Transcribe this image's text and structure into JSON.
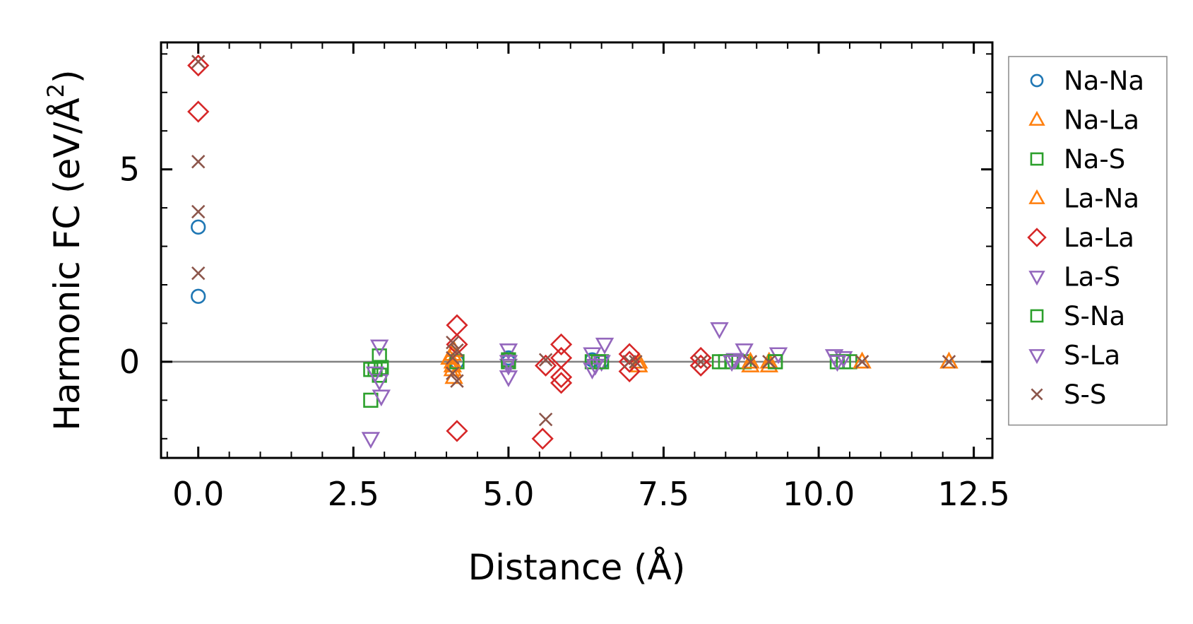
{
  "chart_data": {
    "type": "scatter",
    "xlabel": "Distance (Å)",
    "ylabel": {
      "prefix": "Harmonic FC (eV/Å",
      "sup": "2",
      "suffix": ")"
    },
    "xlim": [
      -0.6,
      12.8
    ],
    "ylim": [
      -2.5,
      8.3
    ],
    "xticks": [
      0.0,
      2.5,
      5.0,
      7.5,
      10.0,
      12.5
    ],
    "xtick_labels": [
      "0.0",
      "2.5",
      "5.0",
      "7.5",
      "10.0",
      "12.5"
    ],
    "yticks": [
      0,
      5
    ],
    "ytick_labels": [
      "0",
      "5"
    ],
    "zero_line": true,
    "legend_position": "right",
    "series": [
      {
        "name": "Na-Na",
        "marker": "circle",
        "color": "#1f77b4",
        "x": [
          0.0,
          0.0,
          4.17,
          5.0,
          5.0,
          6.35,
          6.5
        ],
        "y": [
          3.5,
          1.7,
          0.0,
          0.1,
          0.0,
          0.05,
          0.0
        ]
      },
      {
        "name": "Na-La",
        "marker": "triangle-up",
        "color": "#ff7f0e",
        "x": [
          4.1,
          4.1,
          4.1,
          4.12,
          7.1,
          8.9,
          9.2,
          10.7,
          12.1
        ],
        "y": [
          0.2,
          0.0,
          -0.2,
          -0.4,
          -0.1,
          -0.1,
          -0.1,
          0.0,
          0.0
        ]
      },
      {
        "name": "Na-S",
        "marker": "square",
        "color": "#2ca02c",
        "x": [
          2.78,
          2.78,
          2.92,
          2.92,
          2.95,
          4.17,
          5.0,
          6.35,
          6.5,
          8.4,
          8.6,
          8.8,
          9.3,
          10.3,
          10.5
        ],
        "y": [
          -1.0,
          -0.2,
          0.15,
          -0.35,
          -0.15,
          0.0,
          0.0,
          0.0,
          0.0,
          0.0,
          0.0,
          0.0,
          0.0,
          0.0,
          0.0
        ]
      },
      {
        "name": "La-Na",
        "marker": "triangle-up",
        "color": "#ff7f0e",
        "x": [
          4.05,
          4.1,
          4.12,
          7.1,
          8.9,
          9.2,
          10.7,
          12.1
        ],
        "y": [
          0.1,
          -0.1,
          0.3,
          0.0,
          0.0,
          0.0,
          0.0,
          0.0
        ]
      },
      {
        "name": "La-La",
        "marker": "diamond",
        "color": "#d62728",
        "x": [
          0.0,
          0.0,
          4.17,
          4.17,
          4.17,
          5.55,
          5.85,
          5.85,
          5.85,
          5.85,
          6.95,
          6.95,
          6.95,
          8.1,
          8.1,
          5.6
        ],
        "y": [
          7.7,
          6.5,
          0.95,
          0.45,
          -1.8,
          -2.0,
          0.45,
          0.1,
          -0.4,
          -0.55,
          0.2,
          0.0,
          -0.25,
          0.1,
          -0.1,
          -0.1
        ]
      },
      {
        "name": "La-S",
        "marker": "triangle-down",
        "color": "#9467bd",
        "x": [
          2.78,
          2.92,
          2.92,
          2.95,
          5.0,
          5.0,
          5.0,
          6.35,
          6.35,
          6.5,
          6.55,
          8.4,
          8.65,
          8.8,
          9.35,
          10.25,
          10.4
        ],
        "y": [
          -2.0,
          0.4,
          -0.5,
          -0.9,
          0.3,
          -0.1,
          -0.4,
          0.2,
          -0.2,
          0.0,
          0.45,
          0.85,
          0.05,
          0.3,
          0.2,
          0.15,
          0.1
        ]
      },
      {
        "name": "S-Na",
        "marker": "square",
        "color": "#2ca02c",
        "x": [
          2.85,
          5.0,
          6.45,
          8.5,
          9.3,
          10.4
        ],
        "y": [
          -0.2,
          0.05,
          0.0,
          0.0,
          0.0,
          0.0
        ]
      },
      {
        "name": "S-La",
        "marker": "triangle-down",
        "color": "#9467bd",
        "x": [
          2.85,
          5.0,
          6.4,
          8.6,
          10.3
        ],
        "y": [
          -0.3,
          0.0,
          -0.1,
          0.0,
          0.0
        ]
      },
      {
        "name": "S-S",
        "marker": "x",
        "color": "#8c564b",
        "x": [
          0.0,
          0.0,
          0.0,
          0.0,
          4.1,
          4.1,
          4.1,
          4.17,
          4.17,
          5.6,
          5.6,
          6.95,
          7.05,
          8.1,
          8.9,
          9.2,
          10.7,
          12.1
        ],
        "y": [
          7.8,
          5.2,
          3.9,
          2.3,
          0.5,
          0.1,
          -0.3,
          0.3,
          -0.5,
          -1.5,
          0.05,
          0.0,
          0.0,
          0.0,
          0.0,
          0.0,
          0.0,
          0.0
        ]
      }
    ]
  }
}
